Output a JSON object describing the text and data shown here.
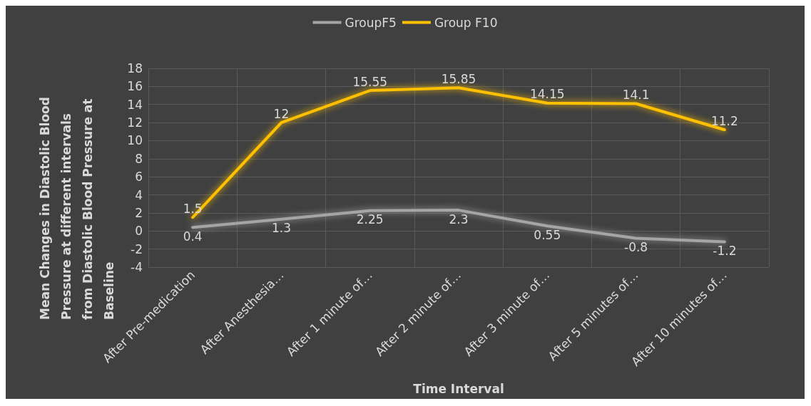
{
  "chart_data": {
    "type": "line",
    "xlabel": "Time Interval",
    "ylabel": "Mean Changes in Diastolic Blood Pressure at different intervals from Diastolic Blood Pressure at Baseline",
    "categories": [
      "After Pre-medication",
      "After Anesthesia…",
      "After 1 minute of…",
      "After 2 minute of…",
      "After 3 minute of…",
      "After 5 minutes of…",
      "After 10 minutes of…"
    ],
    "series": [
      {
        "name": "GroupF5",
        "color": "#a5a5a5",
        "values": [
          0.4,
          1.3,
          2.25,
          2.3,
          0.55,
          -0.8,
          -1.2
        ]
      },
      {
        "name": "Group F10",
        "color": "#ffc000",
        "values": [
          1.5,
          12,
          15.55,
          15.85,
          14.15,
          14.1,
          11.2
        ]
      }
    ],
    "ylim": [
      -4,
      18
    ],
    "yticks": [
      -4,
      -2,
      0,
      2,
      4,
      6,
      8,
      10,
      12,
      14,
      16,
      18
    ],
    "grid": true,
    "legend": "top",
    "data_labels": true,
    "marker": "none",
    "line_style": "solid"
  }
}
